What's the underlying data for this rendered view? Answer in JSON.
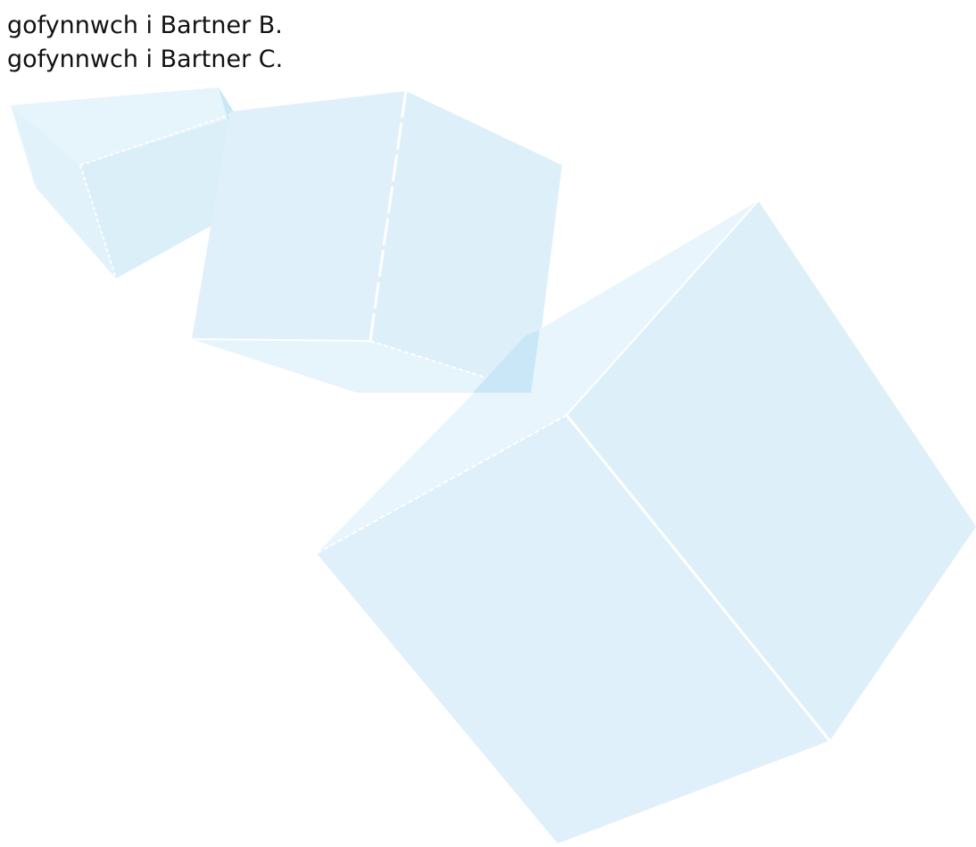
{
  "lines": [
    "gofynnwch i Bartner B.",
    "gofynnwch i Bartner C."
  ]
}
